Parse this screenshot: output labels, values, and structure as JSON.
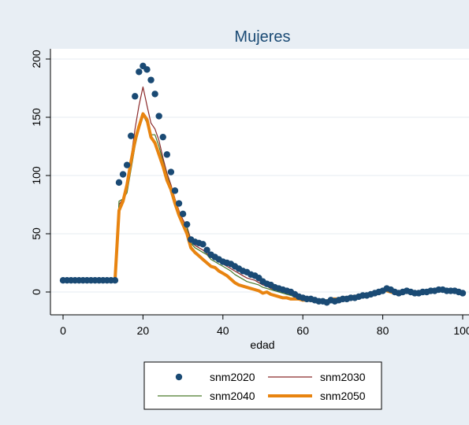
{
  "chart_data": {
    "type": "line",
    "title": "Mujeres",
    "xlabel": "edad",
    "ylabel": "",
    "xlim": [
      0,
      100
    ],
    "ylim": [
      -10,
      205
    ],
    "xticks": [
      0,
      20,
      40,
      60,
      80,
      100
    ],
    "xtick_labels": [
      "0",
      "20",
      "40",
      "60",
      "80",
      "100"
    ],
    "yticks": [
      0,
      50,
      100,
      150,
      200
    ],
    "ytick_labels": [
      "0",
      "50",
      "100",
      "150",
      "200"
    ],
    "grid": "horizontal",
    "legend_position": "bottom",
    "colors": {
      "outer_bg": "#e8eef4",
      "plot_bg": "#ffffff",
      "title": "#1a4a74"
    },
    "series": [
      {
        "name": "snm2020",
        "style": "markers",
        "color": "#1a4a74",
        "x": [
          0,
          1,
          2,
          3,
          4,
          5,
          6,
          7,
          8,
          9,
          10,
          11,
          12,
          13,
          14,
          15,
          16,
          17,
          18,
          19,
          20,
          21,
          22,
          23,
          24,
          25,
          26,
          27,
          28,
          29,
          30,
          31,
          32,
          33,
          34,
          35,
          36,
          37,
          38,
          39,
          40,
          41,
          42,
          43,
          44,
          45,
          46,
          47,
          48,
          49,
          50,
          51,
          52,
          53,
          54,
          55,
          56,
          57,
          58,
          59,
          60,
          61,
          62,
          63,
          64,
          65,
          66,
          67,
          68,
          69,
          70,
          71,
          72,
          73,
          74,
          75,
          76,
          77,
          78,
          79,
          80,
          81,
          82,
          83,
          84,
          85,
          86,
          87,
          88,
          89,
          90,
          91,
          92,
          93,
          94,
          95,
          96,
          97,
          98,
          99,
          100
        ],
        "y": [
          10,
          10,
          10,
          10,
          10,
          10,
          10,
          10,
          10,
          10,
          10,
          10,
          10,
          10,
          94,
          101,
          109,
          134,
          168,
          189,
          194,
          191,
          182,
          170,
          151,
          133,
          118,
          103,
          87,
          76,
          67,
          58,
          45,
          43,
          42,
          41,
          36,
          32,
          30,
          28,
          26,
          25,
          24,
          22,
          20,
          18,
          17,
          15,
          14,
          12,
          9,
          7,
          6,
          4,
          3,
          2,
          1,
          0,
          -2,
          -4,
          -5,
          -6,
          -6,
          -7,
          -8,
          -8,
          -9,
          -7,
          -8,
          -7,
          -6,
          -6,
          -5,
          -5,
          -4,
          -3,
          -3,
          -2,
          -1,
          0,
          1,
          3,
          2,
          0,
          -1,
          0,
          1,
          0,
          -1,
          -1,
          0,
          0,
          1,
          1,
          2,
          2,
          1,
          1,
          1,
          0,
          -1
        ]
      },
      {
        "name": "snm2030",
        "style": "line",
        "color": "#8b2a2a",
        "x": [
          0,
          1,
          2,
          3,
          4,
          5,
          6,
          7,
          8,
          9,
          10,
          11,
          12,
          13,
          14,
          15,
          16,
          17,
          18,
          19,
          20,
          21,
          22,
          23,
          24,
          25,
          26,
          27,
          28,
          29,
          30,
          31,
          32,
          33,
          34,
          35,
          36,
          37,
          38,
          39,
          40,
          41,
          42,
          43,
          44,
          45,
          46,
          47,
          48,
          49,
          50,
          51,
          52,
          53,
          54,
          55,
          56,
          57,
          58,
          59,
          60,
          61,
          62,
          63,
          64,
          65,
          66,
          67,
          68,
          69,
          70,
          71,
          72,
          73,
          74,
          75,
          76,
          77,
          78,
          79,
          80,
          81,
          82,
          83,
          84,
          85,
          86,
          87,
          88,
          89,
          90,
          91,
          92,
          93,
          94,
          95,
          96,
          97,
          98,
          99,
          100
        ],
        "y": [
          10,
          10,
          10,
          10,
          10,
          10,
          10,
          10,
          10,
          10,
          10,
          10,
          10,
          10,
          75,
          80,
          90,
          115,
          140,
          160,
          176,
          160,
          145,
          140,
          130,
          115,
          102,
          92,
          80,
          70,
          62,
          56,
          45,
          40,
          38,
          36,
          33,
          30,
          28,
          26,
          24,
          22,
          20,
          18,
          16,
          14,
          12,
          11,
          10,
          8,
          6,
          5,
          3,
          2,
          1,
          0,
          -1,
          -2,
          -3,
          -4,
          -5,
          -5,
          -6,
          -6,
          -7,
          -6,
          -7,
          -6,
          -6,
          -5,
          -5,
          -4,
          -4,
          -3,
          -3,
          -3,
          -2,
          -2,
          -1,
          0,
          1,
          2,
          1,
          0,
          -1,
          -1,
          0,
          0,
          -1,
          -1,
          0,
          0,
          0,
          1,
          1,
          1,
          1,
          0,
          0,
          0,
          -1
        ]
      },
      {
        "name": "snm2040",
        "style": "line",
        "color": "#4a7a2a",
        "x": [
          0,
          1,
          2,
          3,
          4,
          5,
          6,
          7,
          8,
          9,
          10,
          11,
          12,
          13,
          14,
          15,
          16,
          17,
          18,
          19,
          20,
          21,
          22,
          23,
          24,
          25,
          26,
          27,
          28,
          29,
          30,
          31,
          32,
          33,
          34,
          35,
          36,
          37,
          38,
          39,
          40,
          41,
          42,
          43,
          44,
          45,
          46,
          47,
          48,
          49,
          50,
          51,
          52,
          53,
          54,
          55,
          56,
          57,
          58,
          59,
          60,
          61,
          62,
          63,
          64,
          65,
          66,
          67,
          68,
          69,
          70,
          71,
          72,
          73,
          74,
          75,
          76,
          77,
          78,
          79,
          80,
          81,
          82,
          83,
          84,
          85,
          86,
          87,
          88,
          89,
          90,
          91,
          92,
          93,
          94,
          95,
          96,
          97,
          98,
          99,
          100
        ],
        "y": [
          10,
          10,
          10,
          10,
          10,
          10,
          10,
          10,
          10,
          10,
          10,
          10,
          10,
          10,
          78,
          80,
          85,
          105,
          125,
          140,
          152,
          145,
          135,
          135,
          125,
          112,
          100,
          90,
          78,
          68,
          60,
          55,
          42,
          38,
          36,
          34,
          32,
          28,
          26,
          24,
          22,
          20,
          18,
          15,
          13,
          11,
          9,
          8,
          7,
          6,
          4,
          3,
          2,
          1,
          0,
          -1,
          -2,
          -3,
          -4,
          -5,
          -5,
          -5,
          -6,
          -6,
          -7,
          -6,
          -7,
          -6,
          -6,
          -5,
          -5,
          -4,
          -4,
          -3,
          -3,
          -3,
          -2,
          -2,
          -1,
          0,
          1,
          2,
          1,
          0,
          -1,
          -1,
          0,
          0,
          -1,
          -1,
          0,
          0,
          0,
          1,
          1,
          1,
          1,
          0,
          0,
          0,
          -1
        ]
      },
      {
        "name": "snm2050",
        "style": "thick-line",
        "color": "#e88410",
        "x": [
          0,
          1,
          2,
          3,
          4,
          5,
          6,
          7,
          8,
          9,
          10,
          11,
          12,
          13,
          14,
          15,
          16,
          17,
          18,
          19,
          20,
          21,
          22,
          23,
          24,
          25,
          26,
          27,
          28,
          29,
          30,
          31,
          32,
          33,
          34,
          35,
          36,
          37,
          38,
          39,
          40,
          41,
          42,
          43,
          44,
          45,
          46,
          47,
          48,
          49,
          50,
          51,
          52,
          53,
          54,
          55,
          56,
          57,
          58,
          59,
          60,
          61,
          62,
          63,
          64,
          65,
          66,
          67,
          68,
          69,
          70,
          71,
          72,
          73,
          74,
          75,
          76,
          77,
          78,
          79,
          80,
          81,
          82,
          83,
          84,
          85,
          86,
          87,
          88,
          89,
          90,
          91,
          92,
          93,
          94,
          95,
          96,
          97,
          98,
          99,
          100
        ],
        "y": [
          10,
          10,
          10,
          10,
          10,
          10,
          10,
          10,
          10,
          10,
          10,
          10,
          10,
          10,
          70,
          78,
          92,
          112,
          130,
          142,
          153,
          148,
          133,
          128,
          118,
          108,
          96,
          88,
          76,
          66,
          58,
          50,
          38,
          34,
          31,
          28,
          25,
          22,
          21,
          18,
          16,
          14,
          11,
          8,
          6,
          5,
          4,
          3,
          2,
          1,
          -1,
          0,
          -2,
          -3,
          -4,
          -5,
          -5,
          -6,
          -6,
          -6,
          -7,
          -7,
          -7,
          -8,
          -8,
          -7,
          -8,
          -6,
          -6,
          -6,
          -5,
          -5,
          -4,
          -4,
          -3,
          -3,
          -2,
          -2,
          -1,
          0,
          2,
          1,
          0,
          -1,
          -2,
          -1,
          0,
          -1,
          -1,
          -1,
          0,
          0,
          0,
          1,
          1,
          1,
          1,
          0,
          0,
          0,
          -1
        ]
      }
    ]
  }
}
